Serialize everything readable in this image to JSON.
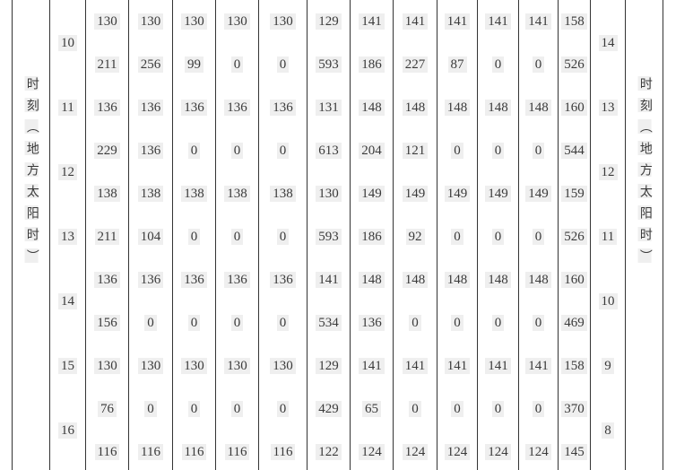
{
  "axis_left": {
    "title": "时刻（地方太阳时）"
  },
  "axis_right": {
    "title": "时刻（地方太阳时）"
  },
  "table": {
    "groups": [
      {
        "left_hour": "10",
        "right_hour": "14",
        "rows": [
          [
            130,
            130,
            130,
            130,
            130,
            129,
            141,
            141,
            141,
            141,
            141,
            158
          ],
          [
            211,
            256,
            99,
            0,
            0,
            593,
            186,
            227,
            87,
            0,
            0,
            526
          ]
        ]
      },
      {
        "left_hour": "11",
        "right_hour": "13",
        "rows": [
          [
            136,
            136,
            136,
            136,
            136,
            131,
            148,
            148,
            148,
            148,
            148,
            160
          ]
        ]
      },
      {
        "left_hour": "12",
        "right_hour": "12",
        "rows": [
          [
            229,
            136,
            0,
            0,
            0,
            613,
            204,
            121,
            0,
            0,
            0,
            544
          ],
          [
            138,
            138,
            138,
            138,
            138,
            130,
            149,
            149,
            149,
            149,
            149,
            159
          ]
        ]
      },
      {
        "left_hour": "13",
        "right_hour": "11",
        "rows": [
          [
            211,
            104,
            0,
            0,
            0,
            593,
            186,
            92,
            0,
            0,
            0,
            526
          ]
        ]
      },
      {
        "left_hour": "14",
        "right_hour": "10",
        "rows": [
          [
            136,
            136,
            136,
            136,
            136,
            141,
            148,
            148,
            148,
            148,
            148,
            160
          ],
          [
            156,
            0,
            0,
            0,
            0,
            534,
            136,
            0,
            0,
            0,
            0,
            469
          ]
        ]
      },
      {
        "left_hour": "15",
        "right_hour": "9",
        "rows": [
          [
            130,
            130,
            130,
            130,
            130,
            129,
            141,
            141,
            141,
            141,
            141,
            158
          ]
        ]
      },
      {
        "left_hour": "16",
        "right_hour": "8",
        "rows": [
          [
            76,
            0,
            0,
            0,
            0,
            429,
            65,
            0,
            0,
            0,
            0,
            370
          ],
          [
            116,
            116,
            116,
            116,
            116,
            122,
            124,
            124,
            124,
            124,
            124,
            145
          ]
        ]
      }
    ]
  },
  "colors": {
    "background": "#ffffff",
    "border": "#333333",
    "text": "#3a3a3a",
    "highlight": "#efefef"
  }
}
